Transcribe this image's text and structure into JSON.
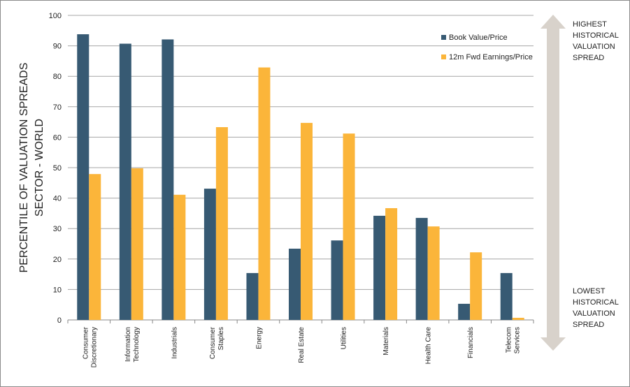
{
  "chart_data": {
    "type": "bar",
    "title": "",
    "ylabel": "PERCENTILE OF VALUATION SPREADS\nSECTOR - WORLD",
    "ylabel_lines": [
      "PERCENTILE OF VALUATION SPREADS",
      "SECTOR - WORLD"
    ],
    "xlabel": "",
    "ylim": [
      0,
      100
    ],
    "yticks": [
      0,
      10,
      20,
      30,
      40,
      50,
      60,
      70,
      80,
      90,
      100
    ],
    "grid": true,
    "legend_position": "top-right",
    "categories": [
      [
        "Consumer",
        "Discretionary"
      ],
      [
        "Information",
        "Technology"
      ],
      [
        "Industrials"
      ],
      [
        "Consumer",
        "Staples"
      ],
      [
        "Energy"
      ],
      [
        "Real Estate"
      ],
      [
        "Utilities"
      ],
      [
        "Materials"
      ],
      [
        "Health Care"
      ],
      [
        "Financials"
      ],
      [
        "Telecom",
        "Services"
      ]
    ],
    "series": [
      {
        "name": "Book Value/Price",
        "color": "#375a73",
        "values": [
          93.8,
          90.7,
          92.1,
          43.1,
          15.4,
          23.4,
          26.1,
          34.2,
          33.5,
          5.3,
          15.4
        ]
      },
      {
        "name": "12m Fwd Earnings/Price",
        "color": "#fbb53a",
        "values": [
          47.9,
          49.8,
          41.1,
          63.3,
          82.9,
          64.7,
          61.2,
          36.7,
          30.7,
          22.2,
          0.7
        ]
      }
    ],
    "annotations": {
      "top": "HIGHEST\nHISTORICAL\nVALUATION\nSPREAD",
      "bottom": "LOWEST\nHISTORICAL\nVALUATION\nSPREAD"
    },
    "arrow_color": "#d8d2cb"
  }
}
